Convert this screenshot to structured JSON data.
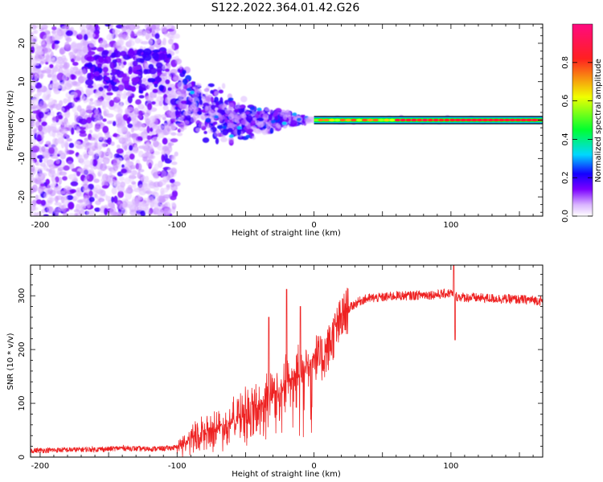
{
  "title": "S122.2022.364.01.42.G26",
  "chart_data": [
    {
      "type": "heatmap",
      "title": "",
      "xlabel": "Height of straight line (km)",
      "ylabel": "Frequency (Hz)",
      "xlim": [
        -207,
        167
      ],
      "ylim": [
        -25,
        25
      ],
      "xticks": [
        -200,
        -100,
        0,
        100
      ],
      "yticks": [
        -20,
        -10,
        0,
        10,
        20
      ],
      "colorbar": {
        "label": "Normalized spectral amplitude",
        "range": [
          0,
          1
        ],
        "ticks": [
          0.0,
          0.2,
          0.4,
          0.6,
          0.8
        ],
        "colormap": [
          "#ffffff",
          "#d9b3ff",
          "#7b00ff",
          "#1400ff",
          "#00d8ff",
          "#00ff30",
          "#f0ff00",
          "#ff2020",
          "#ff0a80"
        ]
      },
      "carrier_line": {
        "frequency_hz": 0,
        "from_km": 0,
        "to_km": 167,
        "amplitude": 0.85
      },
      "noise_region": {
        "from_km": -207,
        "to_km": -100,
        "frequency_spread_hz": 25
      }
    },
    {
      "type": "line",
      "title": "",
      "xlabel": "Height of straight line (km)",
      "ylabel": "SNR (10 * v/v)",
      "xlim": [
        -207,
        167
      ],
      "ylim": [
        0,
        357
      ],
      "xticks": [
        -200,
        -100,
        0,
        100
      ],
      "yticks": [
        0,
        100,
        200,
        300
      ],
      "color": "#ee2222",
      "series": [
        {
          "name": "SNR",
          "x": [
            -207,
            -190,
            -170,
            -150,
            -140,
            -125,
            -110,
            -100,
            -95,
            -90,
            -80,
            -70,
            -60,
            -50,
            -40,
            -35,
            -30,
            -25,
            -20,
            -15,
            -10,
            -5,
            0,
            5,
            10,
            15,
            20,
            25,
            30,
            35,
            40,
            50,
            60,
            70,
            80,
            90,
            100,
            102,
            105,
            110,
            120,
            130,
            140,
            150,
            160,
            167
          ],
          "y": [
            12,
            13,
            14,
            15,
            17,
            15,
            16,
            18,
            25,
            35,
            45,
            55,
            65,
            80,
            95,
            110,
            120,
            130,
            140,
            150,
            160,
            170,
            190,
            180,
            200,
            230,
            255,
            275,
            285,
            292,
            295,
            297,
            300,
            300,
            302,
            302,
            305,
            300,
            298,
            297,
            296,
            295,
            294,
            293,
            292,
            290
          ]
        }
      ],
      "spikes": [
        {
          "x": 102,
          "y": 357
        },
        {
          "x": 103,
          "y": 218
        },
        {
          "x": -20,
          "y": 312
        },
        {
          "x": -33,
          "y": 260
        },
        {
          "x": -10,
          "y": 280
        }
      ]
    }
  ]
}
